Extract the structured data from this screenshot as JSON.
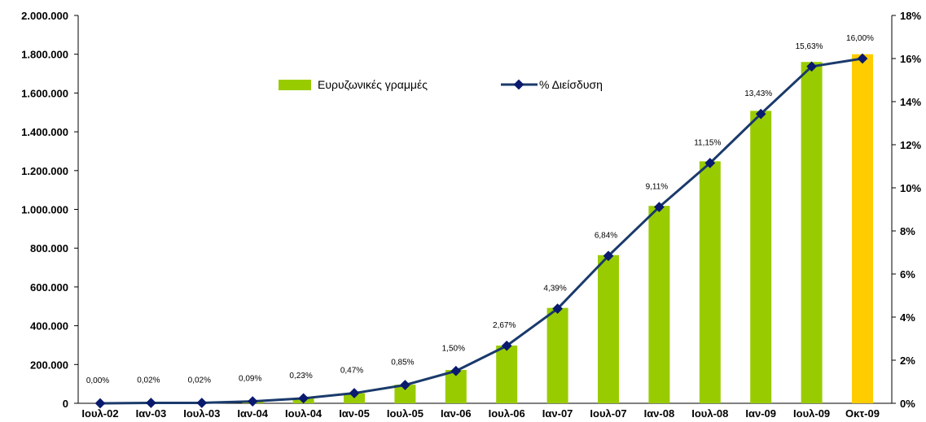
{
  "chart_data": {
    "type": "bar",
    "categories": [
      "Ιουλ-02",
      "Ιαν-03",
      "Ιουλ-03",
      "Ιαν-04",
      "Ιουλ-04",
      "Ιαν-05",
      "Ιουλ-05",
      "Ιαν-06",
      "Ιουλ-06",
      "Ιαν-07",
      "Ιουλ-07",
      "Ιαν-08",
      "Ιουλ-08",
      "Ιαν-09",
      "Ιουλ-09",
      "Οκτ-09"
    ],
    "series": [
      {
        "name": "Ευρυζωνικές γραμμές",
        "type": "bar",
        "axis": "left",
        "values": [
          0,
          2000,
          2000,
          10000,
          25000,
          52000,
          96000,
          172000,
          298000,
          492000,
          764000,
          1018000,
          1248000,
          1508000,
          1760000,
          1800000
        ],
        "color": "#99cc00",
        "highlight_color": "#ffcc00",
        "highlight_index": 15
      },
      {
        "name": "% Διείσδυση",
        "type": "line",
        "axis": "right",
        "values": [
          0.0,
          0.02,
          0.02,
          0.09,
          0.23,
          0.47,
          0.85,
          1.5,
          2.67,
          4.39,
          6.84,
          9.11,
          11.15,
          13.43,
          15.63,
          16.0
        ],
        "labels": [
          "0,00%",
          "0,02%",
          "0,02%",
          "0,09%",
          "0,23%",
          "0,47%",
          "0,85%",
          "1,50%",
          "2,67%",
          "4,39%",
          "6,84%",
          "9,11%",
          "11,15%",
          "13,43%",
          "15,63%",
          "16,00%"
        ],
        "color": "#1a3a6b",
        "marker_color": "#0a1a6e"
      }
    ],
    "y_left": {
      "lim": [
        0,
        2000000
      ],
      "ticks": [
        0,
        200000,
        400000,
        600000,
        800000,
        1000000,
        1200000,
        1400000,
        1600000,
        1800000,
        2000000
      ],
      "tick_labels": [
        "0",
        "200.000",
        "400.000",
        "600.000",
        "800.000",
        "1.000.000",
        "1.200.000",
        "1.400.000",
        "1.600.000",
        "1.800.000",
        "2.000.000"
      ]
    },
    "y_right": {
      "lim": [
        0,
        18
      ],
      "ticks": [
        0,
        2,
        4,
        6,
        8,
        10,
        12,
        14,
        16,
        18
      ],
      "tick_labels": [
        "0%",
        "2%",
        "4%",
        "6%",
        "8%",
        "10%",
        "12%",
        "14%",
        "16%",
        "18%"
      ]
    },
    "legend_position": "top-center",
    "grid": false
  }
}
